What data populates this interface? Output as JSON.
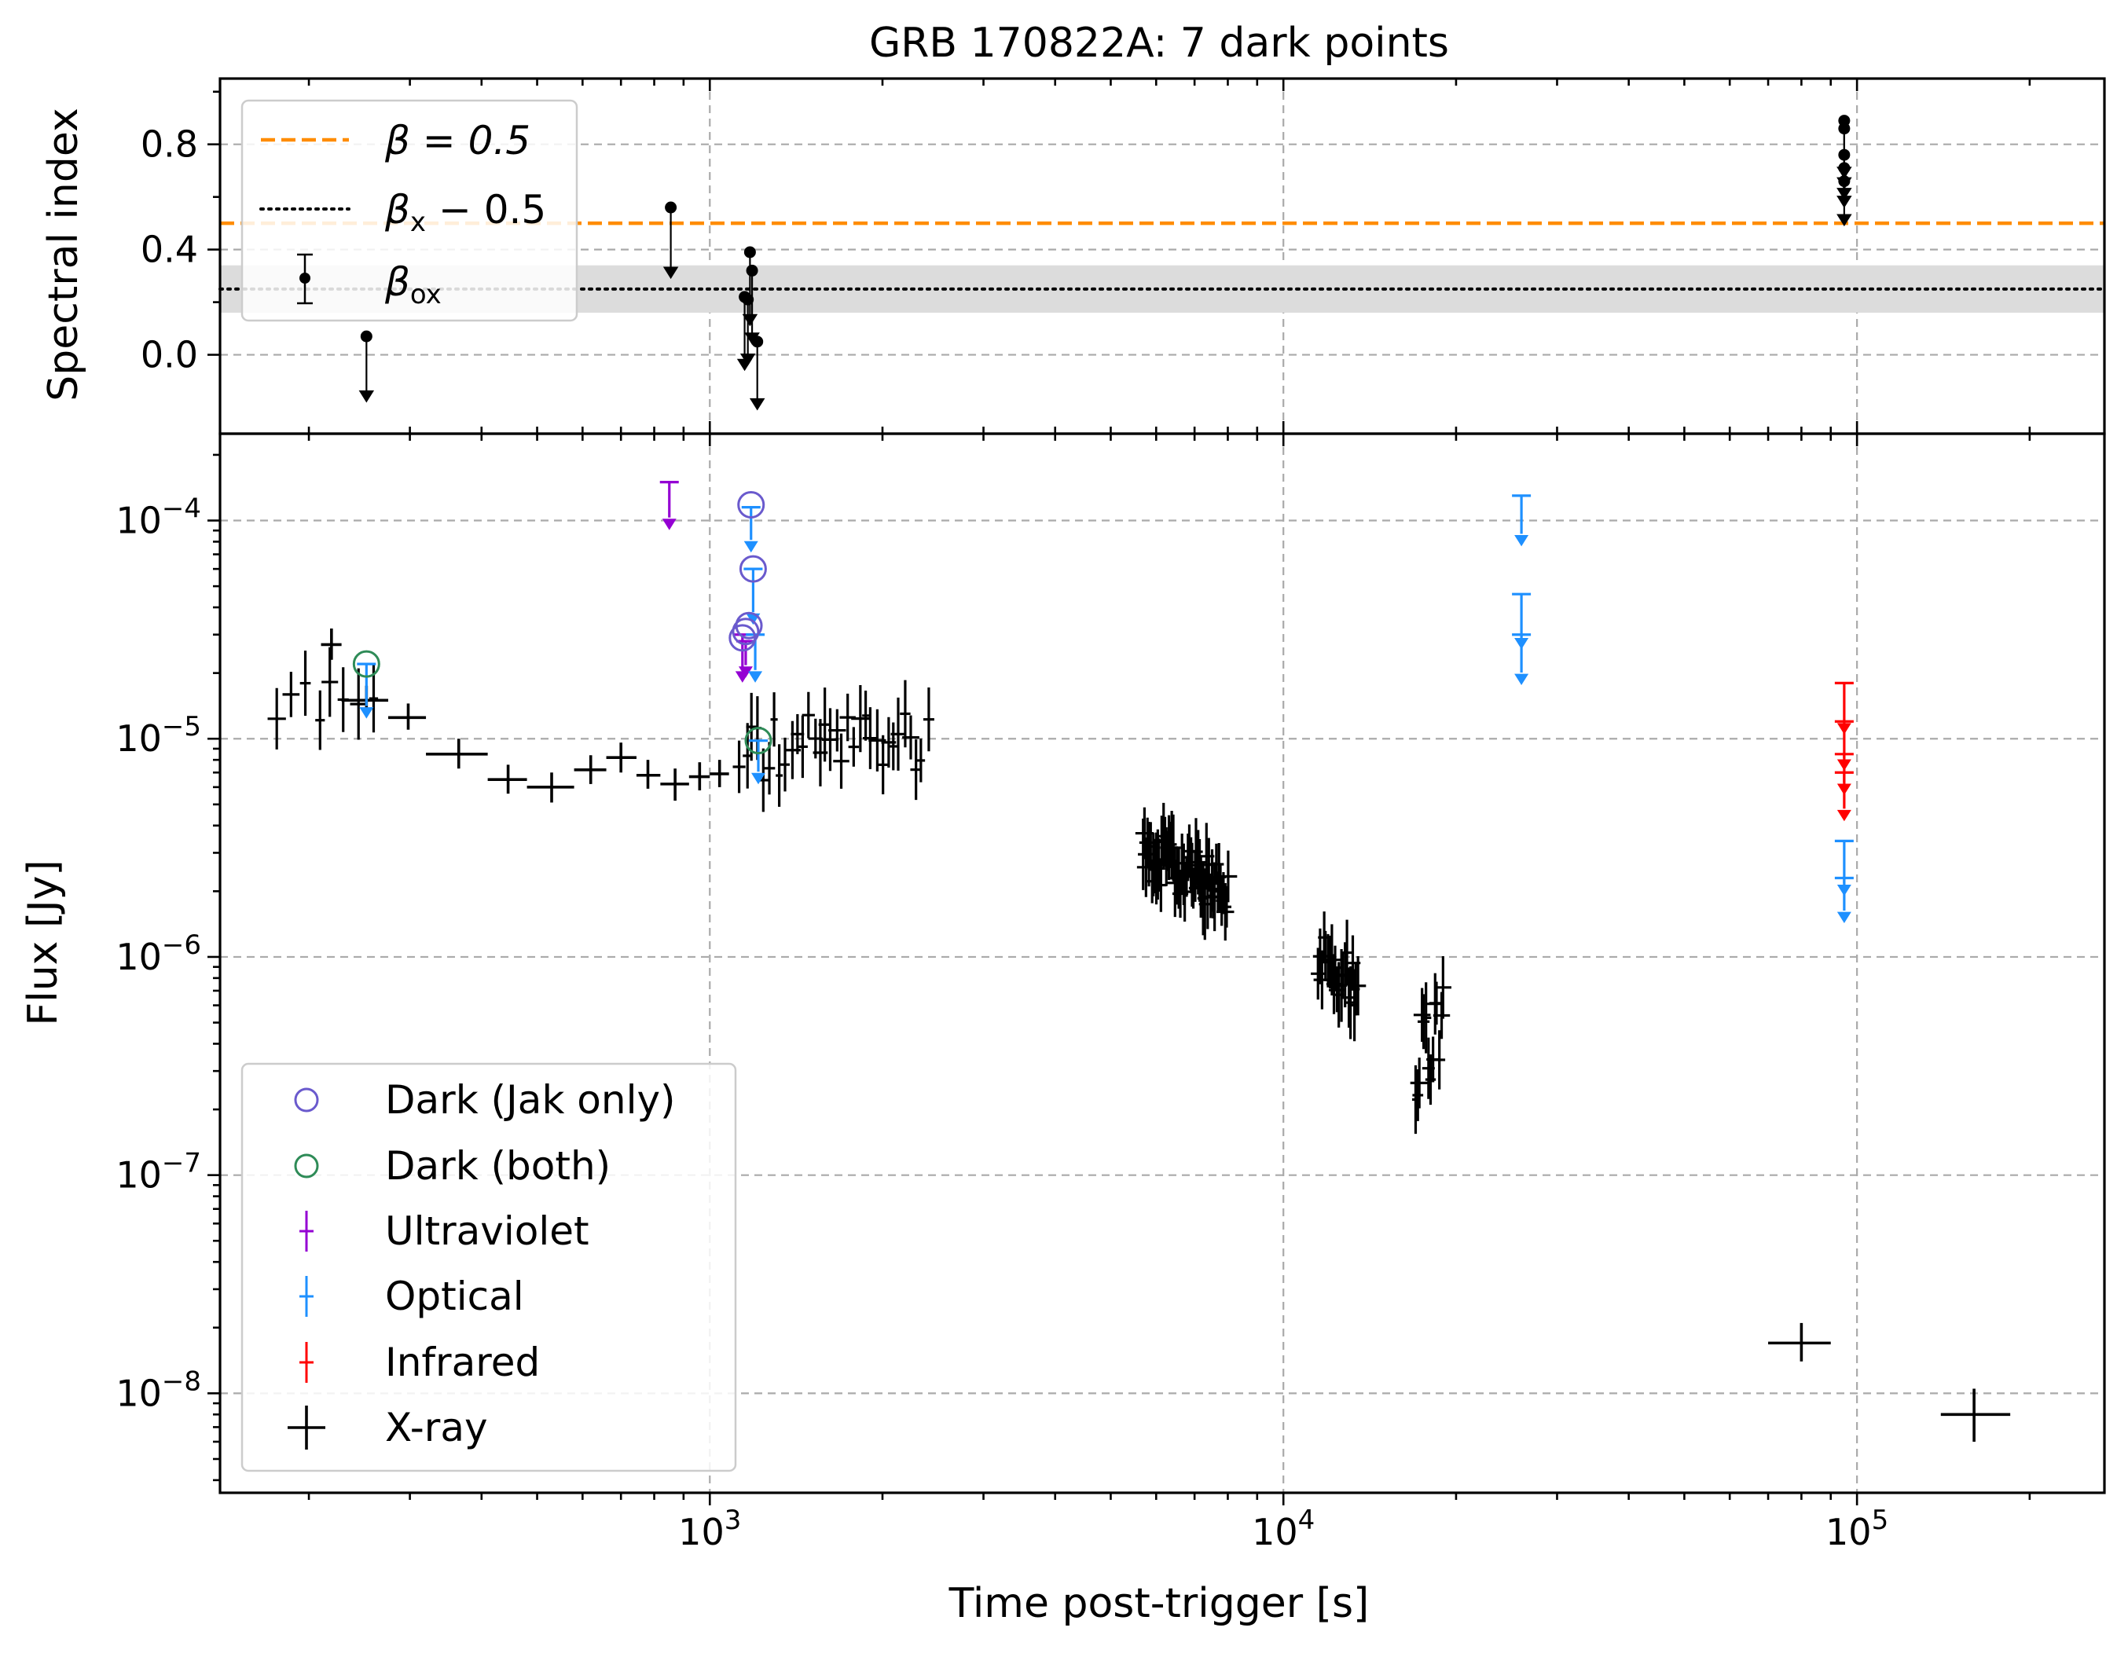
{
  "chart_data": [
    {
      "type": "scatter",
      "panel": "spectral-index",
      "title": "GRB 170822A: 7 dark points",
      "ylabel": "Spectral index",
      "xscale": "log",
      "xlim": [
        140,
        270000
      ],
      "ylim": [
        -0.3,
        1.05
      ],
      "grid": true,
      "y_ticks": [
        {
          "value": 0.0,
          "label": "0.0"
        },
        {
          "value": 0.4,
          "label": "0.4"
        },
        {
          "value": 0.8,
          "label": "0.8"
        }
      ],
      "hlines": [
        {
          "name": "beta_0.5",
          "y": 0.5,
          "style": "dashed",
          "color": "#ff8c00"
        },
        {
          "name": "beta_x_minus_0.5",
          "y": 0.25,
          "style": "dotted",
          "color": "#000000",
          "band": [
            0.16,
            0.34
          ],
          "band_color": "#dcdcdc"
        }
      ],
      "beta_ox_upper_limits": [
        {
          "x": 252,
          "y": 0.07,
          "arrow_to": -0.17
        },
        {
          "x": 855,
          "y": 0.56,
          "arrow_to": 0.3
        },
        {
          "x": 1150,
          "y": 0.22,
          "arrow_to": -0.05
        },
        {
          "x": 1165,
          "y": 0.21,
          "arrow_to": -0.03
        },
        {
          "x": 1175,
          "y": 0.39,
          "arrow_to": 0.12
        },
        {
          "x": 1185,
          "y": 0.32,
          "arrow_to": 0.05
        },
        {
          "x": 1210,
          "y": 0.05,
          "arrow_to": -0.2
        },
        {
          "x": 95000,
          "y": 0.89,
          "arrow_to": 0.68
        },
        {
          "x": 95000,
          "y": 0.86,
          "arrow_to": 0.64
        },
        {
          "x": 95000,
          "y": 0.76,
          "arrow_to": 0.6
        },
        {
          "x": 95000,
          "y": 0.71,
          "arrow_to": 0.57
        },
        {
          "x": 95000,
          "y": 0.66,
          "arrow_to": 0.5
        }
      ],
      "legend": {
        "placement": "upper left",
        "entries": [
          {
            "label_main": "β = 0.5",
            "style": "dashed",
            "color": "#ff8c00"
          },
          {
            "label_main": "β",
            "label_sub": "x",
            "label_rest": " − 0.5",
            "style": "dotted",
            "color": "#000000"
          },
          {
            "label_main": "β",
            "label_sub": "ox",
            "label_rest": "",
            "style": "errorbar",
            "color": "#000000"
          }
        ]
      }
    },
    {
      "type": "scatter",
      "panel": "flux",
      "xlabel": "Time post-trigger [s]",
      "ylabel": "Flux [Jy]",
      "xscale": "log",
      "yscale": "log",
      "xlim": [
        140,
        270000
      ],
      "ylim": [
        3.5e-09,
        0.00025
      ],
      "grid": true,
      "x_ticks": [
        {
          "value": 1000,
          "base": "10",
          "exp": "3"
        },
        {
          "value": 10000,
          "base": "10",
          "exp": "4"
        },
        {
          "value": 100000,
          "base": "10",
          "exp": "5"
        }
      ],
      "y_ticks": [
        {
          "value": 1e-08,
          "base": "10",
          "exp": "−8"
        },
        {
          "value": 1e-07,
          "base": "10",
          "exp": "−7"
        },
        {
          "value": 1e-06,
          "base": "10",
          "exp": "−6"
        },
        {
          "value": 1e-05,
          "base": "10",
          "exp": "−5"
        },
        {
          "value": 0.0001,
          "base": "10",
          "exp": "−4"
        }
      ],
      "series": [
        {
          "name": "Dark (Jak only)",
          "color": "#6a5acd",
          "marker": "open-circle",
          "points": [
            {
              "x": 1180,
              "y": 0.000118
            },
            {
              "x": 1190,
              "y": 6e-05
            },
            {
              "x": 1140,
              "y": 2.9e-05
            },
            {
              "x": 1155,
              "y": 3.1e-05
            },
            {
              "x": 1170,
              "y": 3.3e-05
            }
          ]
        },
        {
          "name": "Dark (both)",
          "color": "#2e8b57",
          "marker": "open-circle",
          "points": [
            {
              "x": 252,
              "y": 2.2e-05
            },
            {
              "x": 1215,
              "y": 9.8e-06
            }
          ]
        },
        {
          "name": "Ultraviolet",
          "color": "#9400d3",
          "marker": "upper-limit",
          "points": [
            {
              "x": 850,
              "y": 0.00015,
              "arrow_to": 9.5e-05
            },
            {
              "x": 1140,
              "y": 3e-05,
              "arrow_to": 1.9e-05
            },
            {
              "x": 1155,
              "y": 2.8e-05,
              "arrow_to": 2e-05
            }
          ]
        },
        {
          "name": "Optical",
          "color": "#1e90ff",
          "marker": "upper-limit",
          "points": [
            {
              "x": 252,
              "y": 2.2e-05,
              "arrow_to": 1.3e-05
            },
            {
              "x": 1180,
              "y": 0.000115,
              "arrow_to": 7.5e-05
            },
            {
              "x": 1190,
              "y": 6e-05,
              "arrow_to": 3.5e-05
            },
            {
              "x": 1200,
              "y": 3e-05,
              "arrow_to": 1.9e-05
            },
            {
              "x": 1215,
              "y": 9.8e-06,
              "arrow_to": 6.5e-06
            },
            {
              "x": 26000,
              "y": 0.00013,
              "arrow_to": 8e-05
            },
            {
              "x": 26000,
              "y": 4.6e-05,
              "arrow_to": 2.7e-05
            },
            {
              "x": 26000,
              "y": 3e-05,
              "arrow_to": 1.85e-05
            },
            {
              "x": 95000,
              "y": 3.4e-06,
              "arrow_to": 2e-06
            },
            {
              "x": 95000,
              "y": 2.3e-06,
              "arrow_to": 1.5e-06
            }
          ]
        },
        {
          "name": "Infrared",
          "color": "#ff0000",
          "marker": "upper-limit",
          "points": [
            {
              "x": 95000,
              "y": 1.8e-05,
              "arrow_to": 1.1e-05
            },
            {
              "x": 95000,
              "y": 1.2e-05,
              "arrow_to": 7.5e-06
            },
            {
              "x": 95000,
              "y": 8.5e-06,
              "arrow_to": 5.8e-06
            },
            {
              "x": 95000,
              "y": 7e-06,
              "arrow_to": 4.4e-06
            }
          ]
        },
        {
          "name": "X-ray",
          "color": "#000000",
          "marker": "cross",
          "binned": [
            {
              "x": 219,
              "y": 2.7e-05,
              "xerr": [
                210,
                228
              ],
              "yerr": [
                2.3e-05,
                3.2e-05
              ]
            },
            {
              "x": 252,
              "y": 1.5e-05,
              "xerr": [
                228,
                275
              ],
              "yerr": [
                1.3e-05,
                1.75e-05
              ]
            },
            {
              "x": 298,
              "y": 1.25e-05,
              "xerr": [
                275,
                320
              ],
              "yerr": [
                1.1e-05,
                1.45e-05
              ]
            },
            {
              "x": 365,
              "y": 8.5e-06,
              "xerr": [
                320,
                410
              ],
              "yerr": [
                7.3e-06,
                1e-05
              ]
            },
            {
              "x": 445,
              "y": 6.5e-06,
              "xerr": [
                410,
                480
              ],
              "yerr": [
                5.6e-06,
                7.6e-06
              ]
            },
            {
              "x": 530,
              "y": 6e-06,
              "xerr": [
                480,
                580
              ],
              "yerr": [
                5.1e-06,
                7e-06
              ]
            },
            {
              "x": 620,
              "y": 7.2e-06,
              "xerr": [
                580,
                660
              ],
              "yerr": [
                6.2e-06,
                8.4e-06
              ]
            },
            {
              "x": 700,
              "y": 8.2e-06,
              "xerr": [
                660,
                745
              ],
              "yerr": [
                7e-06,
                9.6e-06
              ]
            },
            {
              "x": 780,
              "y": 6.8e-06,
              "xerr": [
                745,
                820
              ],
              "yerr": [
                5.9e-06,
                8e-06
              ]
            },
            {
              "x": 870,
              "y": 6.2e-06,
              "xerr": [
                820,
                920
              ],
              "yerr": [
                5.2e-06,
                7.3e-06
              ]
            },
            {
              "x": 960,
              "y": 6.7e-06,
              "xerr": [
                920,
                1000
              ],
              "yerr": [
                5.8e-06,
                7.8e-06
              ]
            },
            {
              "x": 1040,
              "y": 6.9e-06,
              "xerr": [
                1000,
                1080
              ],
              "yerr": [
                6e-06,
                8e-06
              ]
            },
            {
              "x": 80000,
              "y": 1.7e-08,
              "xerr": [
                70000,
                90000
              ],
              "yerr": [
                1.4e-08,
                2.1e-08
              ]
            },
            {
              "x": 160000,
              "y": 8e-09,
              "xerr": [
                140000,
                185000
              ],
              "yerr": [
                6e-09,
                1.05e-08
              ]
            }
          ],
          "fine_segments": [
            {
              "x_start": 175,
              "x_end": 260,
              "count": 8,
              "y_start": 1.4e-05,
              "y_end": 1.6e-05,
              "scatter": 0.14
            },
            {
              "x_start": 1130,
              "x_end": 2400,
              "count": 34,
              "y_start": 8.5e-06,
              "y_end": 1.05e-05,
              "scatter": 0.16
            },
            {
              "x_start": 5700,
              "x_end": 8000,
              "count": 60,
              "y_start": 3e-06,
              "y_end": 2e-06,
              "scatter": 0.12
            },
            {
              "x_start": 11500,
              "x_end": 13500,
              "count": 22,
              "y_start": 1.05e-06,
              "y_end": 7.5e-07,
              "scatter": 0.12
            },
            {
              "x_start": 17000,
              "x_end": 19000,
              "count": 14,
              "y_start": 3.5e-07,
              "y_end": 5e-07,
              "scatter": 0.2
            }
          ]
        }
      ],
      "legend": {
        "placement": "lower left",
        "entries": [
          {
            "label": "Dark (Jak only)",
            "marker": "open-circle",
            "color": "#6a5acd"
          },
          {
            "label": "Dark (both)",
            "marker": "open-circle",
            "color": "#2e8b57"
          },
          {
            "label": "Ultraviolet",
            "marker": "errorbar",
            "color": "#9400d3"
          },
          {
            "label": "Optical",
            "marker": "errorbar",
            "color": "#1e90ff"
          },
          {
            "label": "Infrared",
            "marker": "errorbar",
            "color": "#ff0000"
          },
          {
            "label": "X-ray",
            "marker": "cross",
            "color": "#000000"
          }
        ]
      }
    }
  ]
}
